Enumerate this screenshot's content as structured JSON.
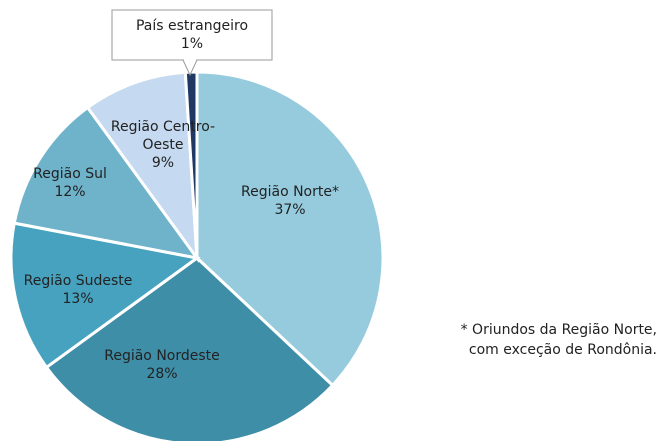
{
  "chart_data": {
    "type": "pie",
    "categories": [
      "Região Norte*",
      "Região Nordeste",
      "Região Sudeste",
      "Região Sul",
      "Região Centro-Oeste",
      "País estrangeiro"
    ],
    "values": [
      37,
      28,
      13,
      12,
      9,
      1
    ],
    "value_labels": [
      "37%",
      "28%",
      "13%",
      "12%",
      "9%",
      "1%"
    ],
    "colors": [
      "#96cbde",
      "#3f8ea8",
      "#46a2be",
      "#6fb3cb",
      "#c5d9f0",
      "#1f3864"
    ],
    "note": [
      "* Oriundos da Região Norte,",
      "com exceção de Rondônia."
    ]
  }
}
